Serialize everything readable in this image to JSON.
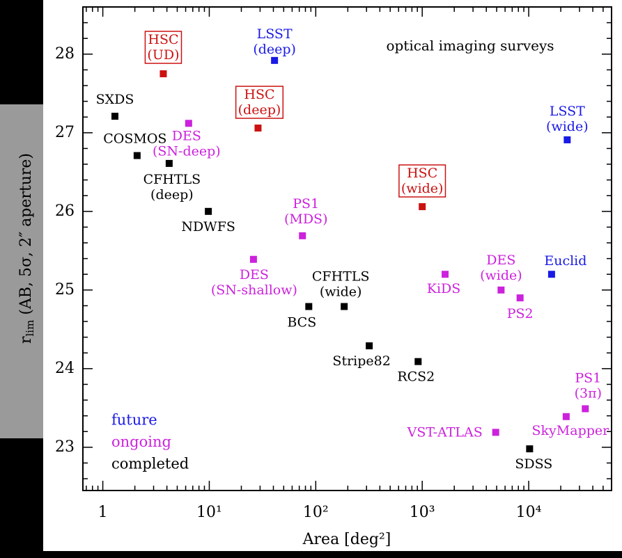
{
  "chart_data": {
    "type": "scatter",
    "annotation": "optical imaging surveys",
    "xlabel": "Area [deg²]",
    "ylabel": {
      "main": "r",
      "sub": "lim",
      "rest": " (AB, 5σ, 2″ aperture)"
    },
    "xscale": "log",
    "xlim": [
      0.65,
      60000
    ],
    "ylim": [
      22.45,
      28.6
    ],
    "xticks": [
      1,
      {
        "value": 10,
        "label": "10¹"
      },
      {
        "value": 100,
        "label": "10²"
      },
      {
        "value": 1000,
        "label": "10³"
      },
      {
        "value": 10000,
        "label": "10⁴"
      }
    ],
    "xminorticks": [
      0.7,
      0.8,
      0.9,
      2,
      3,
      4,
      5,
      6,
      7,
      8,
      9,
      20,
      30,
      40,
      50,
      60,
      70,
      80,
      90,
      200,
      300,
      400,
      500,
      600,
      700,
      800,
      900,
      2000,
      3000,
      4000,
      5000,
      6000,
      7000,
      8000,
      9000,
      20000,
      30000,
      40000,
      50000
    ],
    "yticks": [
      23,
      24,
      25,
      26,
      27,
      28
    ],
    "yminorticks": [
      22.6,
      22.8,
      23.2,
      23.4,
      23.6,
      23.8,
      24.2,
      24.4,
      24.6,
      24.8,
      25.2,
      25.4,
      25.6,
      25.8,
      26.2,
      26.4,
      26.6,
      26.8,
      27.2,
      27.4,
      27.6,
      27.8,
      28.2,
      28.4
    ],
    "legend": "lower left",
    "series": [
      {
        "name": "future",
        "color": "#1a1ae6",
        "x": [
          41,
          23000,
          16400
        ],
        "y": [
          27.92,
          26.91,
          25.2
        ],
        "labels": [
          [
            "LSST",
            "(deep)"
          ],
          [
            "LSST",
            "(wide)"
          ],
          [
            "Euclid"
          ]
        ]
      },
      {
        "name": "ongoing",
        "color": "#cc22dd",
        "x": [
          6.4,
          75,
          26,
          1640,
          5500,
          8300,
          34000,
          22500,
          4900
        ],
        "y": [
          27.12,
          25.69,
          25.39,
          25.2,
          25.0,
          24.9,
          23.49,
          23.39,
          23.19
        ],
        "labels": [
          [
            "DES",
            "(SN-deep)"
          ],
          [
            "PS1",
            "(MDS)"
          ],
          [
            "DES",
            "(SN-shallow)"
          ],
          [
            "KiDS"
          ],
          [
            "DES",
            "(wide)"
          ],
          [
            "PS2"
          ],
          [
            "PS1",
            "(3π)"
          ],
          [
            "SkyMapper"
          ],
          [
            "VST-ATLAS"
          ]
        ]
      },
      {
        "name": "completed",
        "color": "#000000",
        "x": [
          1.3,
          2.1,
          4.2,
          9.8,
          86,
          185,
          318,
          915,
          10200
        ],
        "y": [
          27.21,
          26.71,
          26.61,
          26.0,
          24.79,
          24.79,
          24.29,
          24.09,
          22.98
        ],
        "labels": [
          [
            "SXDS"
          ],
          [
            "COSMOS"
          ],
          [
            "CFHTLS",
            "(deep)"
          ],
          [
            "NDWFS"
          ],
          [
            "BCS"
          ],
          [
            "CFHTLS",
            "(wide)"
          ],
          [
            "Stripe82"
          ],
          [
            "RCS2"
          ],
          [
            "SDSS"
          ]
        ]
      },
      {
        "color": "#cc1111",
        "boxed": true,
        "x": [
          3.7,
          28.7,
          1000
        ],
        "y": [
          27.75,
          27.06,
          26.06
        ],
        "labels": [
          [
            "HSC",
            "(UD)"
          ],
          [
            "HSC",
            "(deep)"
          ],
          [
            "HSC",
            "(wide)"
          ]
        ]
      }
    ]
  }
}
